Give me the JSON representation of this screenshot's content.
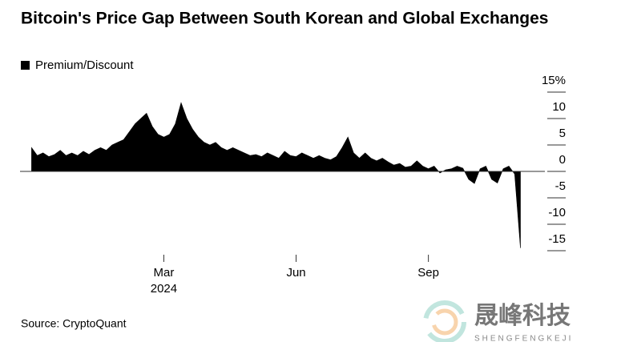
{
  "chart_data": {
    "type": "area",
    "title": "Bitcoin's Price Gap Between South Korean and Global Exchanges",
    "source": "Source: CryptoQuant",
    "watermark": "晟峰科技",
    "watermark_sub": "SHENGFENGKEJI",
    "x": [
      -32,
      -28,
      -24,
      -20,
      -16,
      -12,
      -8,
      -4,
      0,
      4,
      8,
      12,
      16,
      20,
      24,
      28,
      32,
      36,
      40,
      44,
      48,
      52,
      56,
      60,
      64,
      68,
      72,
      76,
      80,
      84,
      88,
      92,
      96,
      100,
      104,
      108,
      112,
      116,
      120,
      124,
      128,
      132,
      136,
      140,
      144,
      148,
      152,
      156,
      160,
      164,
      168,
      172,
      176,
      180,
      184,
      188,
      192,
      196,
      200,
      204,
      208,
      212,
      216,
      220,
      224,
      228,
      232,
      236,
      240,
      244,
      248,
      252,
      256,
      260,
      264,
      268,
      272,
      276,
      280,
      284,
      288,
      292,
      296,
      300,
      304,
      308
    ],
    "series": [
      {
        "name": "Premium/Discount",
        "color": "#000000",
        "values": [
          4.5,
          3,
          3.5,
          2.8,
          3.2,
          4,
          3,
          3.5,
          3,
          3.8,
          3.2,
          4,
          4.5,
          4,
          5,
          5.5,
          6,
          7.5,
          9,
          10,
          11,
          8.5,
          7,
          6.5,
          7,
          9,
          13,
          10,
          8,
          6.5,
          5.5,
          5,
          5.5,
          4.5,
          4,
          4.5,
          4,
          3.5,
          3,
          3.2,
          2.8,
          3.5,
          3,
          2.5,
          3.8,
          3,
          2.8,
          3.5,
          3,
          2.5,
          3,
          2.5,
          2.2,
          2.8,
          4.5,
          6.5,
          3.5,
          2.5,
          3.5,
          2.5,
          2,
          2.5,
          1.8,
          1.2,
          1.5,
          0.8,
          1,
          2,
          1,
          0.5,
          1,
          -0.3,
          0.3,
          0.5,
          1,
          0.6,
          -1.5,
          -2.3,
          0.5,
          1,
          -1.5,
          -2.2,
          0.5,
          1,
          -0.5,
          -14.5
        ]
      }
    ],
    "xlim": [
      -40,
      325
    ],
    "xticks": [
      {
        "value": 60,
        "label": "Mar"
      },
      {
        "value": 152,
        "label": "Jun"
      },
      {
        "value": 244,
        "label": "Sep"
      }
    ],
    "x_year_label": "2024",
    "ylim": [
      -15,
      15
    ],
    "yticks": [
      {
        "value": 15,
        "label": "15%"
      },
      10,
      5,
      0,
      -5,
      -10,
      -15
    ],
    "legend": "top-left"
  }
}
